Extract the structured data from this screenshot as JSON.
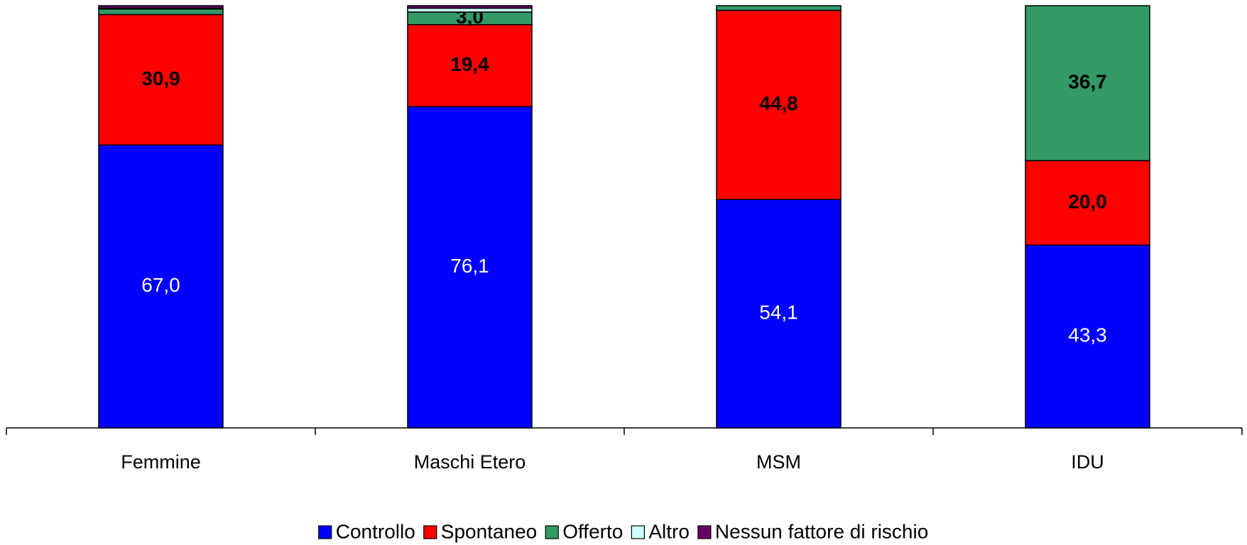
{
  "chart_data": {
    "type": "stacked_bar",
    "categories": [
      "Femmine",
      "Maschi Etero",
      "MSM",
      "IDU"
    ],
    "series": [
      {
        "name": "Controllo",
        "color": "#0000ff",
        "values": [
          67.0,
          76.1,
          54.1,
          43.3
        ],
        "value_labels": [
          "67,0",
          "76,1",
          "54,1",
          "43,3"
        ]
      },
      {
        "name": "Spontaneo",
        "color": "#ff0000",
        "values": [
          30.9,
          19.4,
          44.8,
          20.0
        ],
        "value_labels": [
          "30,9",
          "19,4",
          "44,8",
          "20,0"
        ]
      },
      {
        "name": "Offerto",
        "color": "#339966",
        "values": [
          1.3,
          3.0,
          1.1,
          36.7
        ],
        "value_labels": [
          null,
          "3,0",
          null,
          "36,7"
        ]
      },
      {
        "name": "Altro",
        "color": "#ccffff",
        "values": [
          0.2,
          0.9,
          0,
          0
        ]
      },
      {
        "name": "Nessun fattore di rischio",
        "color": "#660066",
        "values": [
          0.6,
          0.6,
          0,
          0
        ]
      }
    ],
    "ylim": [
      0,
      100
    ]
  }
}
